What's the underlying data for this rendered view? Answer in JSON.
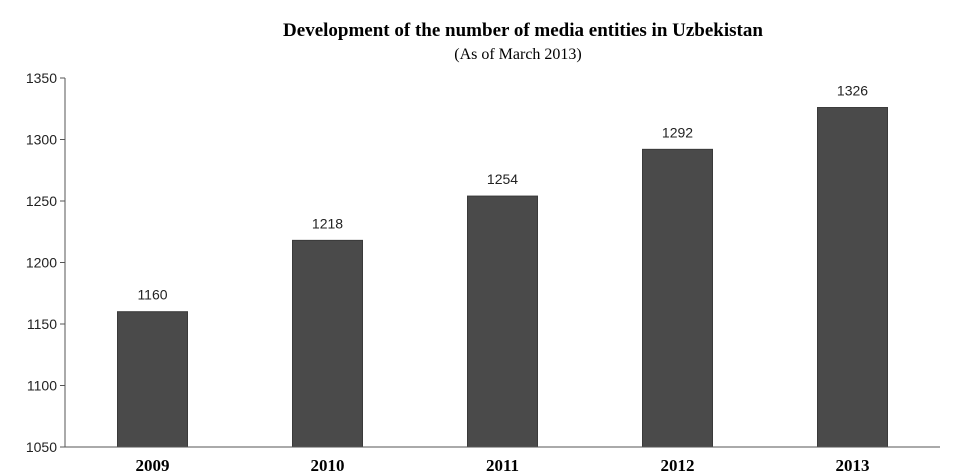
{
  "chart_data": {
    "type": "bar",
    "title": "Development of the number of media entities in Uzbekistan",
    "subtitle": "(As of March 2013)",
    "xlabel": "",
    "ylabel": "",
    "categories": [
      "2009",
      "2010",
      "2011",
      "2012",
      "2013"
    ],
    "values": [
      1160,
      1218,
      1254,
      1292,
      1326
    ],
    "data_labels": [
      "1160",
      "1218",
      "1254",
      "1292",
      "1326"
    ],
    "ylim": [
      1050,
      1350
    ],
    "yticks": [
      1050,
      1100,
      1150,
      1200,
      1250,
      1300,
      1350
    ],
    "grid": false,
    "legend": "none",
    "bar_color": "#4a4a4a"
  }
}
